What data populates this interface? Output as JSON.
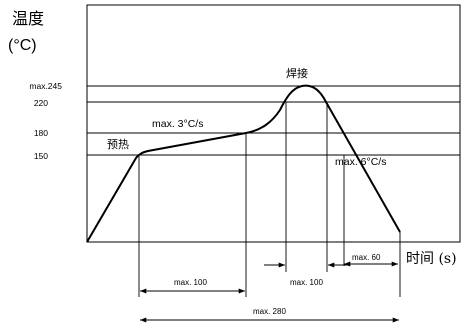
{
  "diagram": {
    "y_axis_title_line1": "温度",
    "y_axis_title_line2": "(°C)",
    "x_axis_title": "时间 (s)",
    "y_ticks": [
      "max.245",
      "220",
      "180",
      "150"
    ],
    "phase_preheat": "预热",
    "phase_solder": "焊接",
    "slope_ramp": "max. 3°C/s",
    "slope_cool": "max. 6°C/s",
    "dim_preheat": "max. 100",
    "dim_above_220": "max. 100",
    "dim_cool": "max. 60",
    "dim_total": "max. 280"
  }
}
